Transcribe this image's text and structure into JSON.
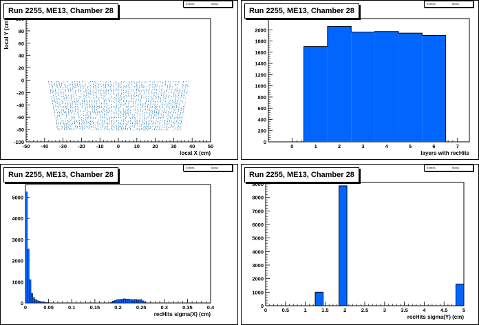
{
  "panels": [
    {
      "title": "Run 2255, ME13, Chamber 28",
      "stats": {
        "entries_label": "Entries",
        "mean_label": "Mean"
      }
    },
    {
      "title": "Run 2255, ME13, Chamber 28",
      "stats": {
        "entries_label": "Entries",
        "mean_label": "Mean"
      }
    },
    {
      "title": "Run 2255, ME13, Chamber 28",
      "stats": {
        "entries_label": "Entries",
        "mean_label": "Mean"
      }
    },
    {
      "title": "Run 2255, ME13, Chamber 28",
      "stats": {
        "entries_label": "Entries",
        "mean_label": "Mean"
      }
    }
  ],
  "chart_data": [
    {
      "type": "scatter",
      "title": "Run 2255, ME13, Chamber 28",
      "xlabel": "local X (cm)",
      "ylabel": "local Y (cm)",
      "xlim": [
        -50,
        50
      ],
      "ylim": [
        -100,
        100
      ],
      "xticks": [
        -50,
        -40,
        -30,
        -20,
        -10,
        0,
        10,
        20,
        30,
        40,
        50
      ],
      "yticks": [
        -100,
        -80,
        -60,
        -40,
        -20,
        0,
        20,
        40,
        60,
        80,
        100
      ],
      "marker_color": "#1f77b4",
      "grid": false,
      "description_region": {
        "y_top": -2,
        "y_bottom": -80,
        "x_left_top": -38,
        "x_right_top": 38,
        "x_left_bottom": -33,
        "x_right_bottom": 33
      }
    },
    {
      "type": "bar",
      "title": "Run 2255, ME13, Chamber 28",
      "xlabel": "layers with recHits",
      "ylabel": "",
      "xlim": [
        -1,
        7.5
      ],
      "ylim": [
        0,
        2200
      ],
      "xticks": [
        0,
        1,
        2,
        3,
        4,
        5,
        6,
        7
      ],
      "yticks": [
        0,
        200,
        400,
        600,
        800,
        1000,
        1200,
        1400,
        1600,
        1800,
        2000
      ],
      "bins": [
        [
          0.5,
          1.5
        ],
        [
          1.5,
          2.5
        ],
        [
          2.5,
          3.5
        ],
        [
          3.5,
          4.5
        ],
        [
          4.5,
          5.5
        ],
        [
          5.5,
          6.5
        ]
      ],
      "values": [
        1700,
        2060,
        1960,
        1970,
        1940,
        1900
      ],
      "fill_color": "#0066ff",
      "grid": false
    },
    {
      "type": "bar",
      "title": "Run 2255, ME13, Chamber 28",
      "xlabel": "recHits sigma(X) (cm)",
      "ylabel": "",
      "xlim": [
        0,
        0.4
      ],
      "ylim": [
        0,
        5600
      ],
      "xticks": [
        0,
        0.05,
        0.1,
        0.15,
        0.2,
        0.25,
        0.3,
        0.35,
        0.4
      ],
      "xtick_labels": [
        "0",
        "0.05",
        "0.1",
        "0.15",
        "0.2",
        "0.25",
        "0.3",
        "0.35",
        "0.4"
      ],
      "yticks": [
        0,
        1000,
        2000,
        3000,
        4000,
        5000
      ],
      "bin_width": 0.004,
      "bin_starts": [
        0,
        0.004,
        0.008,
        0.012,
        0.016,
        0.02,
        0.024,
        0.028,
        0.032,
        0.036,
        0.04,
        0.044,
        0.184,
        0.188,
        0.192,
        0.196,
        0.2,
        0.204,
        0.208,
        0.212,
        0.216,
        0.22,
        0.224,
        0.228,
        0.232,
        0.236,
        0.24,
        0.244,
        0.248,
        0.252,
        0.256
      ],
      "values": [
        5250,
        2550,
        1100,
        450,
        250,
        160,
        110,
        80,
        60,
        40,
        30,
        20,
        40,
        90,
        120,
        150,
        160,
        170,
        180,
        200,
        180,
        190,
        170,
        160,
        150,
        170,
        160,
        150,
        140,
        100,
        40
      ],
      "fill_color": "#0066ff",
      "grid": false
    },
    {
      "type": "bar",
      "title": "Run 2255, ME13, Chamber 28",
      "xlabel": "recHits sigma(Y) (cm)",
      "ylabel": "",
      "xlim": [
        0,
        5
      ],
      "ylim": [
        0,
        9100
      ],
      "xticks": [
        0,
        0.5,
        1,
        1.5,
        2,
        2.5,
        3,
        3.5,
        4,
        4.5,
        5
      ],
      "xtick_labels": [
        "0",
        "0.5",
        "1",
        "1.5",
        "2",
        "2.5",
        "3",
        "3.5",
        "4",
        "4.5",
        "5"
      ],
      "yticks": [
        0,
        1000,
        2000,
        3000,
        4000,
        5000,
        6000,
        7000,
        8000,
        9000
      ],
      "bins": [
        [
          1.25,
          1.45
        ],
        [
          1.85,
          2.05
        ],
        [
          4.8,
          5.0
        ]
      ],
      "values": [
        1000,
        8850,
        1600
      ],
      "fill_color": "#0066ff",
      "grid": false
    }
  ]
}
